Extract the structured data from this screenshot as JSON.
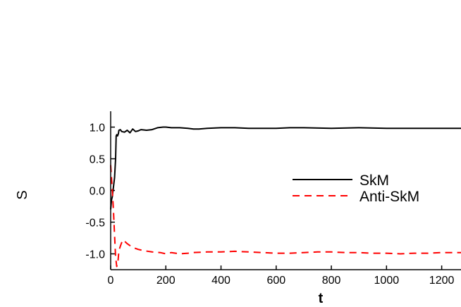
{
  "chart_data": {
    "type": "line",
    "title": "",
    "xlabel": "t",
    "ylabel": "S",
    "xlim": [
      0,
      1270
    ],
    "ylim": [
      -1.25,
      1.25
    ],
    "x_ticks": [
      0,
      200,
      400,
      600,
      800,
      1000,
      1200
    ],
    "x_tick_labels": [
      "0",
      "200",
      "400",
      "600",
      "800",
      "1000",
      "1200"
    ],
    "y_ticks": [
      1.0,
      0.5,
      0.0,
      -0.5,
      -1.0
    ],
    "y_tick_labels": [
      "1.0",
      "0.5",
      "0.0",
      "-0.5",
      "-1.0"
    ],
    "grid": false,
    "legend_position": "center-right",
    "series": [
      {
        "name": "SkM",
        "color": "#000000",
        "dash": "solid",
        "x": [
          0,
          3,
          6,
          10,
          14,
          18,
          20,
          22,
          25,
          28,
          30,
          35,
          40,
          50,
          60,
          70,
          80,
          90,
          100,
          110,
          130,
          150,
          170,
          190,
          200,
          220,
          250,
          280,
          300,
          320,
          350,
          400,
          450,
          500,
          550,
          600,
          650,
          700,
          800,
          900,
          1000,
          1100,
          1200,
          1270
        ],
        "y": [
          -0.3,
          -0.15,
          -0.1,
          0.05,
          0.2,
          0.5,
          0.86,
          0.88,
          0.86,
          0.9,
          0.95,
          0.96,
          0.93,
          0.92,
          0.95,
          0.91,
          0.97,
          0.93,
          0.94,
          0.96,
          0.95,
          0.96,
          0.99,
          1.0,
          1.0,
          0.99,
          0.99,
          0.98,
          0.97,
          0.97,
          0.98,
          0.99,
          0.99,
          0.98,
          0.98,
          0.98,
          0.99,
          0.99,
          0.98,
          0.99,
          0.98,
          0.98,
          0.98,
          0.98
        ]
      },
      {
        "name": "Anti-SkM",
        "color": "#ff0000",
        "dash": "dashed",
        "x": [
          0,
          3,
          6,
          10,
          14,
          18,
          22,
          26,
          30,
          35,
          40,
          45,
          50,
          60,
          70,
          80,
          100,
          120,
          150,
          180,
          200,
          220,
          250,
          280,
          300,
          350,
          400,
          450,
          500,
          550,
          600,
          650,
          700,
          750,
          800,
          850,
          900,
          950,
          1000,
          1050,
          1100,
          1150,
          1200,
          1270
        ],
        "y": [
          0.4,
          0.2,
          0.0,
          -0.3,
          -0.7,
          -1.05,
          -1.2,
          -1.14,
          -0.95,
          -0.88,
          -0.82,
          -0.78,
          -0.8,
          -0.84,
          -0.87,
          -0.9,
          -0.93,
          -0.95,
          -0.97,
          -0.98,
          -1.0,
          -0.98,
          -1.0,
          -0.99,
          -0.98,
          -0.97,
          -0.97,
          -0.96,
          -0.97,
          -0.98,
          -0.99,
          -0.99,
          -0.98,
          -0.97,
          -0.97,
          -0.98,
          -0.98,
          -0.99,
          -0.99,
          -1.0,
          -0.99,
          -0.99,
          -0.98,
          -0.98
        ]
      }
    ]
  }
}
